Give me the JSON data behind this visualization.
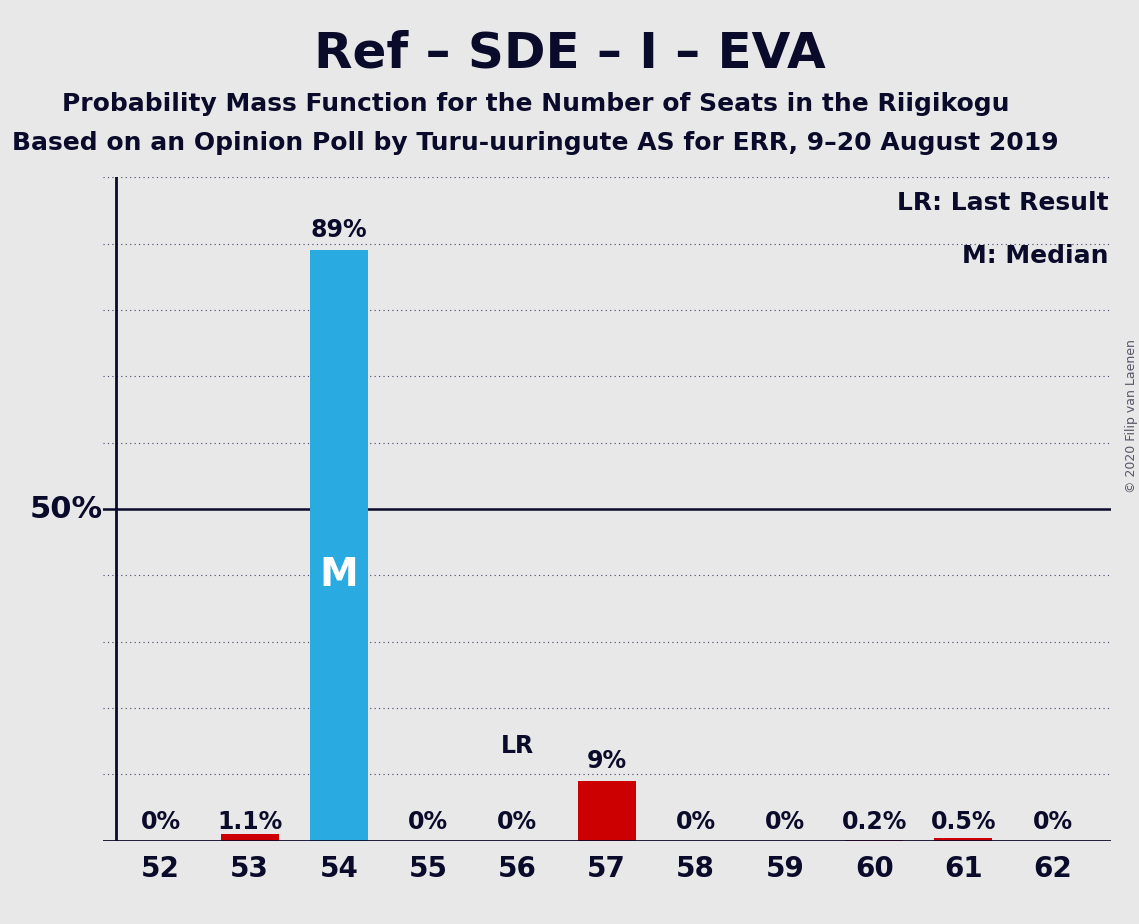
{
  "title": "Ref – SDE – I – EVA",
  "subtitle1": "Probability Mass Function for the Number of Seats in the Riigikogu",
  "subtitle2": "Based on an Opinion Poll by Turu-uuringute AS for ERR, 9–20 August 2019",
  "categories": [
    52,
    53,
    54,
    55,
    56,
    57,
    58,
    59,
    60,
    61,
    62
  ],
  "values": [
    0.0,
    1.1,
    89.0,
    0.0,
    0.0,
    9.0,
    0.0,
    0.0,
    0.2,
    0.5,
    0.0
  ],
  "bar_labels": [
    "0%",
    "1.1%",
    "89%",
    "0%",
    "0%",
    "9%",
    "0%",
    "0%",
    "0.2%",
    "0.5%",
    "0%"
  ],
  "bar_colors": [
    "#cc0000",
    "#cc0000",
    "#29abe2",
    "#cc0000",
    "#cc0000",
    "#cc0000",
    "#cc0000",
    "#cc0000",
    "#cc0000",
    "#cc0000",
    "#cc0000"
  ],
  "median_bar_index": 2,
  "lr_label_index": 5,
  "ylim": [
    0,
    100
  ],
  "ylabel_50": "50%",
  "background_color": "#e8e8e8",
  "grid_color": "#444466",
  "annotation_lr": "LR",
  "annotation_m": "M",
  "legend_lr": "LR: Last Result",
  "legend_m": "M: Median",
  "copyright": "© 2020 Filip van Laenen",
  "title_fontsize": 36,
  "subtitle_fontsize": 18,
  "bar_label_fontsize": 17,
  "tick_fontsize": 20,
  "legend_fontsize": 18,
  "fifty_fontsize": 22,
  "m_fontsize": 28,
  "lr_above_fontsize": 17,
  "text_color": "#0a0a2a"
}
